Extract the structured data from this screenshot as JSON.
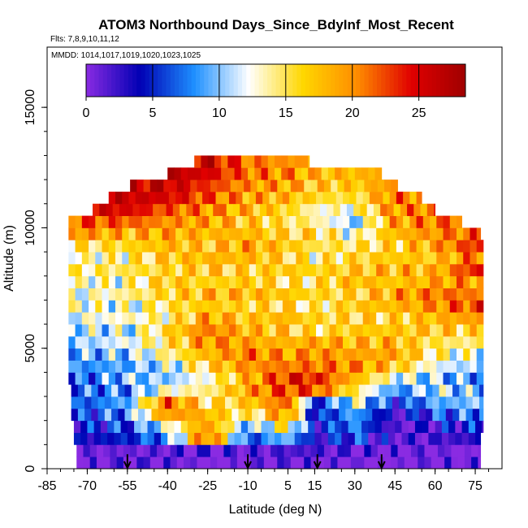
{
  "chart_data": {
    "type": "heatmap",
    "title": "ATOM3 Northbound Days_Since_BdyInf_Most_Recent",
    "subtitle": "Flts: 7,8,9,10,11,12",
    "annotation": "MMDD: 1014,1017,1019,1020,1023,1025",
    "xlabel": "Latitude (deg N)",
    "ylabel": "Altitude (m)",
    "xlim": [
      -85,
      85
    ],
    "ylim": [
      0,
      17500
    ],
    "x_ticks": [
      "-85",
      "-70",
      "-55",
      "-40",
      "-25",
      "-10",
      "5",
      "15",
      "30",
      "45",
      "60",
      "75"
    ],
    "y_ticks": [
      "0",
      "5000",
      "10000",
      "15000"
    ],
    "colorbar": {
      "min": 0,
      "max": 28.5,
      "ticks": [
        "0",
        "5",
        "10",
        "15",
        "20",
        "25"
      ],
      "colors": [
        "#8a2be2",
        "#0000b4",
        "#1e90ff",
        "#ffffff",
        "#ffd700",
        "#ff8c00",
        "#e00000",
        "#a00000"
      ]
    },
    "arrows_latitude": [
      -55,
      -10,
      16,
      40
    ],
    "grid": false,
    "legend": "colorbar top",
    "altitude_levels": [
      250,
      750,
      1250,
      1750,
      2250,
      2750,
      3250,
      3750,
      4250,
      4750,
      5250,
      5750,
      6250,
      6750,
      7250,
      7750,
      8250,
      8750,
      9250,
      9750,
      10250,
      10750,
      11250,
      11750,
      12250,
      12750
    ],
    "row_extent_latitude": [
      [
        -74,
        77
      ],
      [
        -74,
        77
      ],
      [
        -75,
        77
      ],
      [
        -75,
        78
      ],
      [
        -76,
        78
      ],
      [
        -76,
        78
      ],
      [
        -76,
        78
      ],
      [
        -77,
        78
      ],
      [
        -77,
        78
      ],
      [
        -77,
        78
      ],
      [
        -77,
        78
      ],
      [
        -77,
        78
      ],
      [
        -77,
        78
      ],
      [
        -77,
        78
      ],
      [
        -77,
        78
      ],
      [
        -77,
        78
      ],
      [
        -77,
        78
      ],
      [
        -77,
        78
      ],
      [
        -77,
        78
      ],
      [
        -77,
        77
      ],
      [
        -77,
        70
      ],
      [
        -68,
        60
      ],
      [
        -62,
        55
      ],
      [
        -54,
        46
      ],
      [
        -40,
        40
      ],
      [
        -30,
        13
      ]
    ],
    "profile": [
      [
        -75,
        [
          0,
          0,
          3,
          4,
          5,
          6,
          7,
          6,
          8,
          9,
          10,
          11,
          12,
          13,
          12,
          13,
          14,
          13,
          15,
          20,
          22,
          25,
          25,
          25,
          25,
          25
        ]
      ],
      [
        -55,
        [
          0,
          1,
          5,
          6,
          8,
          9,
          8,
          10,
          9,
          10,
          12,
          11,
          13,
          12,
          14,
          13,
          15,
          14,
          16,
          18,
          22,
          25,
          26,
          26,
          25,
          25
        ]
      ],
      [
        -40,
        [
          1,
          1,
          8,
          12,
          20,
          22,
          13,
          10,
          11,
          14,
          15,
          16,
          14,
          15,
          16,
          17,
          16,
          17,
          18,
          19,
          20,
          22,
          25,
          26,
          27,
          27
        ]
      ],
      [
        -25,
        [
          0,
          1,
          22,
          20,
          18,
          15,
          14,
          13,
          16,
          18,
          20,
          21,
          19,
          17,
          18,
          16,
          17,
          18,
          17,
          18,
          19,
          20,
          22,
          23,
          25,
          26
        ]
      ],
      [
        -10,
        [
          0,
          1,
          6,
          9,
          14,
          17,
          19,
          18,
          20,
          21,
          19,
          18,
          17,
          16,
          18,
          17,
          16,
          18,
          19,
          18,
          17,
          18,
          19,
          20,
          21,
          21
        ]
      ],
      [
        5,
        [
          0,
          2,
          10,
          15,
          20,
          22,
          23,
          24,
          21,
          19,
          18,
          17,
          18,
          16,
          17,
          15,
          17,
          16,
          17,
          16,
          15,
          16,
          18,
          19,
          20,
          20
        ]
      ],
      [
        15,
        [
          0,
          2,
          3,
          4,
          4,
          5,
          22,
          24,
          21,
          20,
          19,
          15,
          16,
          14,
          16,
          15,
          16,
          14,
          15,
          16,
          14,
          13,
          16,
          17,
          18,
          19
        ]
      ],
      [
        30,
        [
          0,
          1,
          6,
          8,
          9,
          12,
          15,
          18,
          20,
          19,
          18,
          17,
          16,
          17,
          16,
          18,
          17,
          16,
          15,
          12,
          10,
          13,
          15,
          17,
          18,
          18
        ]
      ],
      [
        45,
        [
          0,
          0,
          1,
          1,
          2,
          5,
          8,
          12,
          17,
          19,
          18,
          17,
          16,
          18,
          19,
          17,
          18,
          17,
          16,
          18,
          19,
          20,
          21,
          20,
          19,
          19
        ]
      ],
      [
        60,
        [
          0,
          0,
          2,
          3,
          6,
          9,
          11,
          10,
          12,
          14,
          15,
          17,
          18,
          20,
          21,
          19,
          18,
          17,
          19,
          20,
          21,
          21,
          20,
          20,
          20,
          20
        ]
      ],
      [
        78,
        [
          0,
          0,
          3,
          5,
          8,
          10,
          9,
          8,
          10,
          12,
          14,
          16,
          20,
          23,
          21,
          20,
          25,
          22,
          24,
          22,
          22,
          22,
          22,
          22,
          22,
          22
        ]
      ]
    ]
  }
}
